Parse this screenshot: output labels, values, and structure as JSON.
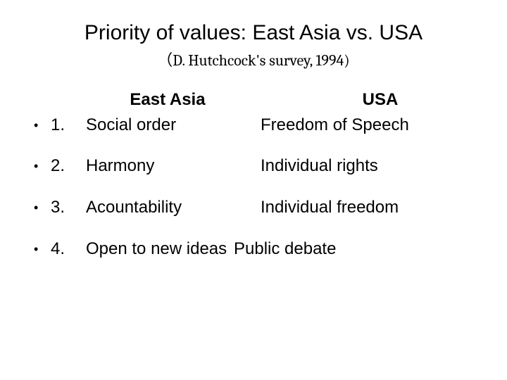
{
  "title": {
    "main": "Priority of values: East Asia vs. USA",
    "sub": "（D. Hutchcock's survey, 1994)"
  },
  "columns": {
    "left": "East Asia",
    "right": "USA"
  },
  "rows": [
    {
      "num": "1.",
      "left": "Social order",
      "right": "Freedom of Speech"
    },
    {
      "num": "2.",
      "left": "Harmony",
      "right": "Individual rights"
    },
    {
      "num": "3.",
      "left": "Acountability",
      "right": "Individual freedom"
    },
    {
      "num": "4.",
      "left": "Open to new ideas",
      "right": "Public debate"
    }
  ],
  "style": {
    "background": "#ffffff",
    "text_color": "#000000",
    "title_fontsize": 30,
    "subtitle_fontsize": 22,
    "header_fontsize": 24,
    "body_fontsize": 24
  }
}
